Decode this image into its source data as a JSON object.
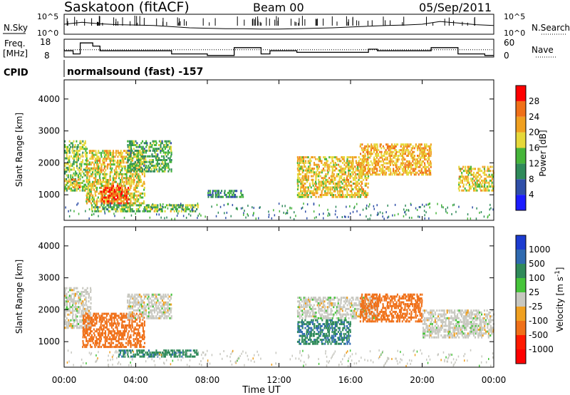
{
  "header": {
    "station": "Saskatoon (fitACF)",
    "beam": "Beam 00",
    "date": "05/Sep/2011"
  },
  "noise_panel": {
    "left_label": "N.Sky",
    "left_ticks": [
      "10^5",
      "10^0"
    ],
    "right_ticks": [
      "10^5",
      "10^0"
    ],
    "right_label": "N.Search"
  },
  "freq_panel": {
    "left_label_1": "Freq.",
    "left_label_2": "[MHz]",
    "left_ticks": [
      "18",
      "8"
    ],
    "right_ticks": [
      "60",
      "0"
    ],
    "right_label": "Nave"
  },
  "cpid_panel": {
    "label": "CPID",
    "text": "normalsound (fast) -157"
  },
  "colors": {
    "power_scale": [
      "#1c1cff",
      "#2f4fa8",
      "#2f8a5a",
      "#46b53a",
      "#e6d83a",
      "#f0a020",
      "#f07018",
      "#ff0000"
    ],
    "velocity_scale": [
      "#1c3cd0",
      "#2f6ab0",
      "#2f8a5a",
      "#46c43a",
      "#c8c8c0",
      "#f0a020",
      "#f07018",
      "#ff1a00",
      "#ff0000"
    ]
  },
  "chart_data": [
    {
      "type": "heatmap",
      "title": "",
      "xlabel": "Time UT",
      "ylabel": "Slant Range [km]",
      "xlim": [
        "00:00",
        "00:00"
      ],
      "ylim": [
        200,
        4600
      ],
      "x_ticks": [
        "00:00",
        "04:00",
        "08:00",
        "12:00",
        "16:00",
        "20:00",
        "00:00"
      ],
      "y_ticks": [
        "1000",
        "2000",
        "3000",
        "4000"
      ],
      "colorbar": {
        "label": "Power [dB]",
        "ticks": [
          "4",
          "8",
          "12",
          "16",
          "20",
          "24",
          "28"
        ],
        "range": [
          0,
          30
        ]
      },
      "echo_regions": [
        {
          "t_start": 0.0,
          "t_end": 1.3,
          "r_start": 1100,
          "r_end": 2700,
          "power": 14
        },
        {
          "t_start": 0.2,
          "t_end": 0.9,
          "r_start": 1200,
          "r_end": 1500,
          "power": 22
        },
        {
          "t_start": 1.2,
          "t_end": 4.5,
          "r_start": 700,
          "r_end": 2400,
          "power": 18
        },
        {
          "t_start": 2.0,
          "t_end": 3.6,
          "r_start": 700,
          "r_end": 1300,
          "power": 26
        },
        {
          "t_start": 3.5,
          "t_end": 6.0,
          "r_start": 1700,
          "r_end": 2700,
          "power": 12
        },
        {
          "t_start": 1.5,
          "t_end": 7.5,
          "r_start": 450,
          "r_end": 700,
          "power": 14
        },
        {
          "t_start": 8.0,
          "t_end": 10.0,
          "r_start": 900,
          "r_end": 1150,
          "power": 10
        },
        {
          "t_start": 13.0,
          "t_end": 17.0,
          "r_start": 900,
          "r_end": 2200,
          "power": 18
        },
        {
          "t_start": 16.5,
          "t_end": 20.5,
          "r_start": 1600,
          "r_end": 2600,
          "power": 20
        },
        {
          "t_start": 22.0,
          "t_end": 24.0,
          "r_start": 1100,
          "r_end": 1900,
          "power": 18
        }
      ]
    },
    {
      "type": "heatmap",
      "title": "",
      "xlabel": "Time UT",
      "ylabel": "Slant Range [km]",
      "xlim": [
        "00:00",
        "00:00"
      ],
      "ylim": [
        200,
        4600
      ],
      "x_ticks": [
        "00:00",
        "04:00",
        "08:00",
        "12:00",
        "16:00",
        "20:00",
        "00:00"
      ],
      "y_ticks": [
        "1000",
        "2000",
        "3000",
        "4000"
      ],
      "colorbar": {
        "label": "Velocity [m s^-1]",
        "ticks": [
          "1000",
          "500",
          "100",
          "25",
          "-25",
          "-100",
          "-500",
          "-1000"
        ],
        "range": [
          -1200,
          1200
        ]
      },
      "echo_regions": [
        {
          "t_start": 0.0,
          "t_end": 1.5,
          "r_start": 1400,
          "r_end": 2700,
          "velocity": 0
        },
        {
          "t_start": 1.0,
          "t_end": 4.5,
          "r_start": 800,
          "r_end": 1900,
          "velocity": -150
        },
        {
          "t_start": 3.5,
          "t_end": 6.0,
          "r_start": 1700,
          "r_end": 2500,
          "velocity": 0
        },
        {
          "t_start": 3.0,
          "t_end": 7.5,
          "r_start": 500,
          "r_end": 750,
          "velocity": 80
        },
        {
          "t_start": 13.0,
          "t_end": 16.0,
          "r_start": 900,
          "r_end": 1700,
          "velocity": 90
        },
        {
          "t_start": 13.0,
          "t_end": 17.5,
          "r_start": 1700,
          "r_end": 2400,
          "velocity": 0
        },
        {
          "t_start": 16.5,
          "t_end": 20.0,
          "r_start": 1600,
          "r_end": 2500,
          "velocity": -400
        },
        {
          "t_start": 20.0,
          "t_end": 24.0,
          "r_start": 1100,
          "r_end": 2000,
          "velocity": 0
        }
      ]
    }
  ],
  "freq_series": {
    "hours": [
      0,
      0.5,
      0.9,
      1.6,
      2.0,
      6.0,
      8.0,
      9.5,
      11.0,
      11.5,
      13.0,
      17.0,
      17.5,
      20.5,
      22.0,
      23.5,
      24.0
    ],
    "values": [
      12,
      10,
      17,
      15,
      12,
      10,
      9,
      14,
      10,
      12,
      11,
      13,
      12,
      14,
      10,
      9,
      9
    ]
  },
  "nave_series": {
    "hours": [
      0,
      2,
      6,
      8,
      10,
      12,
      14,
      16,
      18,
      20,
      22,
      24
    ],
    "values": [
      28,
      28,
      28,
      28,
      28,
      28,
      28,
      28,
      28,
      28,
      28,
      28
    ]
  },
  "noise_series": {
    "hours": [
      0,
      1,
      2,
      3,
      4,
      5,
      6,
      7,
      8,
      9,
      10,
      11,
      12,
      13,
      14,
      15,
      16,
      17,
      18,
      19,
      20,
      21,
      22,
      23,
      24
    ],
    "values": [
      2.5,
      3.0,
      2.6,
      2.4,
      2.3,
      2.2,
      1.9,
      1.6,
      1.5,
      1.4,
      1.4,
      1.3,
      1.3,
      1.4,
      1.5,
      1.6,
      1.8,
      2.0,
      2.2,
      2.3,
      2.5,
      3.2,
      2.8,
      2.4,
      2.2
    ]
  }
}
